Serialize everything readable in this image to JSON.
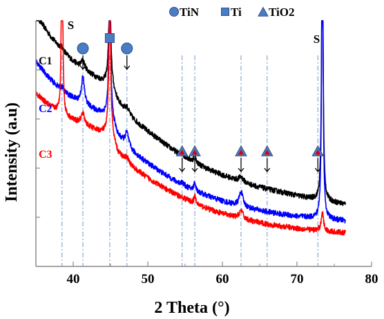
{
  "chart_data": {
    "type": "line",
    "xlabel": "2 Theta (°)",
    "ylabel": "Intensity (a.u)",
    "xlim": [
      35,
      80
    ],
    "xticks": [
      40,
      50,
      60,
      70,
      80
    ],
    "ylim": [
      0,
      10
    ],
    "y_tick_labels_shown": false,
    "grid": false,
    "legend": {
      "placement": "top",
      "items": [
        {
          "marker": "circle",
          "label": "TiN",
          "color": "#5b8fd6"
        },
        {
          "marker": "square",
          "label": "Ti",
          "color": "#4a7cc4"
        },
        {
          "marker": "triangle",
          "label": "TiO2",
          "color": "#3f6fbf"
        }
      ]
    },
    "series": [
      {
        "name": "C1",
        "color": "#000000",
        "baseline": [
          [
            35,
            10.2
          ],
          [
            36,
            9.8
          ],
          [
            37,
            9.35
          ],
          [
            38,
            9.0
          ],
          [
            39,
            8.65
          ],
          [
            40,
            8.35
          ],
          [
            41,
            8.1
          ],
          [
            42,
            7.9
          ],
          [
            43,
            7.7
          ],
          [
            44,
            7.52
          ],
          [
            45,
            7.35
          ],
          [
            46,
            6.7
          ],
          [
            47,
            6.3
          ],
          [
            48,
            6.0
          ],
          [
            50,
            5.5
          ],
          [
            52,
            5.05
          ],
          [
            54,
            4.62
          ],
          [
            56,
            4.28
          ],
          [
            58,
            3.97
          ],
          [
            60,
            3.72
          ],
          [
            62,
            3.5
          ],
          [
            64,
            3.3
          ],
          [
            66,
            3.15
          ],
          [
            68,
            3.02
          ],
          [
            70,
            2.88
          ],
          [
            72,
            2.75
          ],
          [
            74,
            2.65
          ],
          [
            76,
            2.55
          ],
          [
            76.5,
            2.53
          ]
        ],
        "peaks": [
          [
            38.5,
            0.1,
            0.3
          ],
          [
            41.3,
            0.35,
            0.3
          ],
          [
            44.9,
            3.6,
            0.18
          ],
          [
            47.2,
            0.25,
            0.35
          ],
          [
            54.6,
            0.1,
            0.2
          ],
          [
            56.3,
            0.35,
            0.15
          ],
          [
            62.5,
            0.2,
            0.35
          ],
          [
            73.4,
            14,
            0.1
          ]
        ]
      },
      {
        "name": "C2",
        "color": "#0000ff",
        "baseline": [
          [
            35,
            8.35
          ],
          [
            36,
            7.95
          ],
          [
            37,
            7.6
          ],
          [
            38,
            7.3
          ],
          [
            39,
            7.05
          ],
          [
            40,
            6.85
          ],
          [
            41,
            6.65
          ],
          [
            42,
            6.5
          ],
          [
            43,
            6.35
          ],
          [
            44,
            6.22
          ],
          [
            45,
            6.1
          ],
          [
            46,
            5.3
          ],
          [
            47,
            4.95
          ],
          [
            48,
            4.65
          ],
          [
            50,
            4.2
          ],
          [
            52,
            3.8
          ],
          [
            54,
            3.42
          ],
          [
            56,
            3.12
          ],
          [
            58,
            2.87
          ],
          [
            60,
            2.66
          ],
          [
            62,
            2.48
          ],
          [
            64,
            2.34
          ],
          [
            66,
            2.22
          ],
          [
            68,
            2.12
          ],
          [
            70,
            2.04
          ],
          [
            72,
            1.98
          ],
          [
            74,
            1.92
          ],
          [
            76,
            1.87
          ],
          [
            76.5,
            1.86
          ]
        ],
        "peaks": [
          [
            38.5,
            0.15,
            0.2
          ],
          [
            41.3,
            1.1,
            0.25
          ],
          [
            44.9,
            5.0,
            0.15
          ],
          [
            47.2,
            0.55,
            0.3
          ],
          [
            54.6,
            0.1,
            0.2
          ],
          [
            56.3,
            0.35,
            0.15
          ],
          [
            62.5,
            0.6,
            0.3
          ],
          [
            73.4,
            14,
            0.1
          ]
        ]
      },
      {
        "name": "C3",
        "color": "#ff0000",
        "baseline": [
          [
            35,
            7.05
          ],
          [
            36,
            6.75
          ],
          [
            37,
            6.5
          ],
          [
            38,
            6.3
          ],
          [
            39,
            6.1
          ],
          [
            40,
            5.95
          ],
          [
            41,
            5.8
          ],
          [
            42,
            5.68
          ],
          [
            43,
            5.55
          ],
          [
            44,
            5.45
          ],
          [
            45,
            5.35
          ],
          [
            46,
            4.6
          ],
          [
            47,
            4.3
          ],
          [
            48,
            4.02
          ],
          [
            50,
            3.6
          ],
          [
            52,
            3.22
          ],
          [
            54,
            2.9
          ],
          [
            56,
            2.6
          ],
          [
            58,
            2.35
          ],
          [
            60,
            2.15
          ],
          [
            62,
            1.98
          ],
          [
            64,
            1.84
          ],
          [
            66,
            1.72
          ],
          [
            68,
            1.63
          ],
          [
            70,
            1.55
          ],
          [
            72,
            1.48
          ],
          [
            74,
            1.42
          ],
          [
            76,
            1.38
          ],
          [
            76.5,
            1.37
          ]
        ],
        "peaks": [
          [
            38.5,
            12.5,
            0.08
          ],
          [
            41.3,
            0.45,
            0.3
          ],
          [
            44.9,
            5.3,
            0.15
          ],
          [
            47.2,
            0.2,
            0.35
          ],
          [
            56.3,
            0.3,
            0.15
          ],
          [
            62.5,
            0.35,
            0.3
          ],
          [
            73.4,
            0.8,
            0.18
          ]
        ]
      }
    ],
    "reference_lines_x": [
      38.5,
      41.3,
      44.9,
      47.2,
      54.6,
      56.3,
      62.5,
      66.0,
      72.8
    ],
    "phase_markers": [
      {
        "phase": "TiN",
        "marker": "circle",
        "x": 41.3,
        "arrow": true
      },
      {
        "phase": "Ti",
        "marker": "square",
        "x": 44.9,
        "arrow": false
      },
      {
        "phase": "TiN",
        "marker": "circle",
        "x": 47.2,
        "arrow": true
      },
      {
        "phase": "TiO2",
        "marker": "triangle",
        "x": 54.6,
        "arrow": true
      },
      {
        "phase": "TiO2",
        "marker": "triangle",
        "x": 56.3,
        "arrow": true
      },
      {
        "phase": "TiO2",
        "marker": "triangle",
        "x": 62.5,
        "arrow": true
      },
      {
        "phase": "TiO2",
        "marker": "triangle",
        "x": 66.0,
        "arrow": true
      },
      {
        "phase": "TiO2",
        "marker": "triangle",
        "x": 72.8,
        "arrow": true
      }
    ],
    "annotations": [
      {
        "text": "S",
        "x": 38.5
      },
      {
        "text": "S",
        "x": 73.4
      }
    ],
    "colors": {
      "marker_fill": "#4a7cc4",
      "marker_stroke": "#2c4f86",
      "triangle_inner": "#e00000",
      "reference_line": "#6f95c9"
    }
  }
}
